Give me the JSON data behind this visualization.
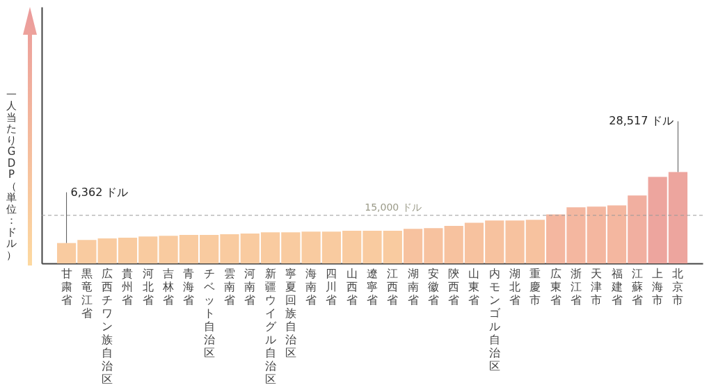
{
  "chart_data": {
    "type": "bar",
    "ylabel": "一人当たりGDP（単位：ドル）",
    "categories": [
      "甘粛省",
      "黒竜江省",
      "広西チワン族自治区",
      "貴州省",
      "河北省",
      "吉林省",
      "青海省",
      "チベット自治区",
      "雲南省",
      "河南省",
      "新疆ウイグル自治区",
      "寧夏回族自治区",
      "海南省",
      "四川省",
      "山西省",
      "遼寧省",
      "江西省",
      "湖南省",
      "安徽省",
      "陝西省",
      "山東省",
      "内モンゴル自治区",
      "湖北省",
      "重慶市",
      "広東省",
      "浙江省",
      "天津市",
      "福建省",
      "江蘇省",
      "上海市",
      "北京市"
    ],
    "values": [
      6362,
      7300,
      7800,
      8000,
      8400,
      8600,
      8900,
      8900,
      9100,
      9300,
      9700,
      9700,
      9900,
      9900,
      10200,
      10200,
      10200,
      10800,
      11000,
      11700,
      12700,
      13400,
      13400,
      13600,
      15300,
      17500,
      17700,
      18100,
      21200,
      27000,
      28517
    ],
    "colors": [
      "#f9cba0",
      "#f9cba0",
      "#f9cba0",
      "#f9cba0",
      "#f9cba0",
      "#f9cba0",
      "#f9cba0",
      "#f9cba0",
      "#f9cba0",
      "#f9cba0",
      "#f9cba0",
      "#f9cba0",
      "#f9cba0",
      "#f9cba0",
      "#f9cba0",
      "#f9cba0",
      "#f9cba0",
      "#f7c29f",
      "#f7c29f",
      "#f7c29f",
      "#f7c29f",
      "#f7c29f",
      "#f7c29f",
      "#f7c29f",
      "#f4b7a0",
      "#f4b7a0",
      "#f4b7a0",
      "#f4b7a0",
      "#f1afa0",
      "#eda59e",
      "#eda59e"
    ],
    "value_labels": [
      "6,362 ドル",
      null,
      null,
      null,
      null,
      null,
      null,
      null,
      null,
      null,
      null,
      null,
      null,
      null,
      null,
      null,
      null,
      null,
      null,
      null,
      null,
      null,
      null,
      null,
      null,
      null,
      null,
      null,
      null,
      null,
      "28,517 ドル"
    ],
    "ylim": [
      0,
      80000
    ],
    "ref_lines": [
      {
        "axis": "y",
        "value": 15000,
        "label": "15,000 ドル",
        "color": "#999999",
        "line_style": "dashed"
      }
    ],
    "tick_labels": "x",
    "grid": false
  }
}
